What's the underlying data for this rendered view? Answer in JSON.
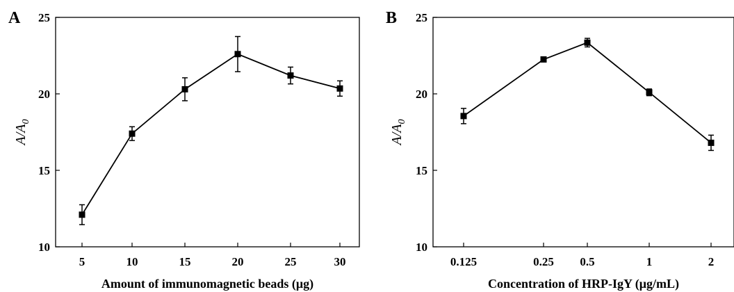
{
  "figure": {
    "panels": [
      "A",
      "B"
    ]
  },
  "chart_data": [
    {
      "type": "line",
      "panel": "A",
      "title": "",
      "xlabel": "Amount of immunomagnetic beads (μg)",
      "ylabel": "A/A0",
      "ylabel_parts": {
        "main": "A/A",
        "sub": "0"
      },
      "categories": [
        "5",
        "10",
        "15",
        "20",
        "25",
        "30"
      ],
      "series": [
        {
          "values": [
            12.1,
            17.4,
            20.3,
            22.6,
            21.2,
            20.35
          ],
          "errors": [
            0.65,
            0.45,
            0.75,
            1.15,
            0.55,
            0.5
          ]
        }
      ],
      "yticks": [
        "10",
        "15",
        "20",
        "25"
      ],
      "ylim": [
        10,
        25
      ],
      "marker": "square",
      "color": "#000000",
      "grid": false
    },
    {
      "type": "line",
      "panel": "B",
      "title": "",
      "xlabel": "Concentration of HRP-IgY (μg/mL)",
      "ylabel": "A/A0",
      "ylabel_parts": {
        "main": "A/A",
        "sub": "0"
      },
      "categories": [
        "0.125",
        "0.25",
        "0.5",
        "1",
        "2"
      ],
      "series": [
        {
          "values": [
            18.55,
            22.25,
            23.35,
            20.1,
            16.8
          ],
          "errors": [
            0.5,
            0.12,
            0.28,
            0.22,
            0.5
          ]
        }
      ],
      "yticks": [
        "10",
        "15",
        "20",
        "25"
      ],
      "ylim": [
        10,
        25
      ],
      "marker": "square",
      "color": "#000000",
      "grid": false
    }
  ]
}
